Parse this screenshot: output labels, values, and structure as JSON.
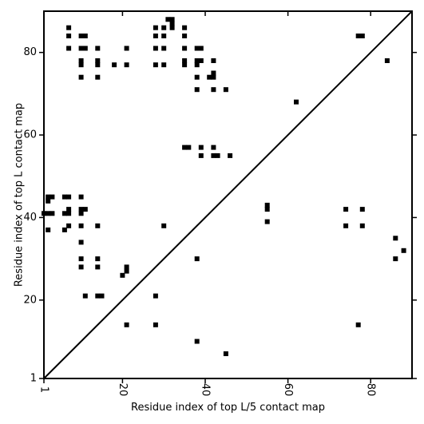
{
  "chart_data": {
    "type": "scatter",
    "title": "",
    "xlabel": "Residue index of top L/5 contact map",
    "ylabel": "Residue index of top L contact map",
    "xlim": [
      1,
      90
    ],
    "ylim": [
      1,
      90
    ],
    "x_ticks": [
      1,
      20,
      40,
      60,
      80
    ],
    "y_ticks": [
      1,
      20,
      40,
      60,
      80
    ],
    "x_tick_labels": [
      "1",
      "20",
      "40",
      "60",
      "80"
    ],
    "y_tick_labels": [
      "1",
      "20",
      "40",
      "60",
      "80"
    ],
    "diagonal": true,
    "marker": "square",
    "marker_color": "#000000",
    "grid": false,
    "series": [
      {
        "points": [
          [
            7,
            86
          ],
          [
            7,
            84
          ],
          [
            7,
            81
          ],
          [
            10,
            84
          ],
          [
            11,
            84
          ],
          [
            10,
            81
          ],
          [
            11,
            81
          ],
          [
            10,
            78
          ],
          [
            10,
            77
          ],
          [
            10,
            74
          ],
          [
            14,
            81
          ],
          [
            14,
            78
          ],
          [
            14,
            77
          ],
          [
            14,
            74
          ],
          [
            18,
            77
          ],
          [
            21,
            81
          ],
          [
            21,
            77
          ],
          [
            28,
            86
          ],
          [
            28,
            84
          ],
          [
            28,
            81
          ],
          [
            28,
            77
          ],
          [
            30,
            86
          ],
          [
            30,
            84
          ],
          [
            30,
            81
          ],
          [
            30,
            77
          ],
          [
            31,
            88
          ],
          [
            32,
            88
          ],
          [
            32,
            87
          ],
          [
            32,
            86
          ],
          [
            35,
            86
          ],
          [
            35,
            84
          ],
          [
            35,
            81
          ],
          [
            35,
            78
          ],
          [
            35,
            77
          ],
          [
            38,
            81
          ],
          [
            39,
            81
          ],
          [
            38,
            78
          ],
          [
            39,
            78
          ],
          [
            38,
            77
          ],
          [
            38,
            74
          ],
          [
            38,
            71
          ],
          [
            41,
            74
          ],
          [
            42,
            75
          ],
          [
            42,
            74
          ],
          [
            42,
            78
          ],
          [
            42,
            71
          ],
          [
            45,
            71
          ],
          [
            62,
            68
          ],
          [
            77,
            84
          ],
          [
            78,
            84
          ],
          [
            84,
            78
          ],
          [
            35,
            57
          ],
          [
            36,
            57
          ],
          [
            39,
            57
          ],
          [
            42,
            57
          ],
          [
            39,
            55
          ],
          [
            42,
            55
          ],
          [
            43,
            55
          ],
          [
            46,
            55
          ],
          [
            2,
            45
          ],
          [
            3,
            45
          ],
          [
            2,
            44
          ],
          [
            6,
            45
          ],
          [
            7,
            45
          ],
          [
            10,
            45
          ],
          [
            1,
            41
          ],
          [
            2,
            41
          ],
          [
            3,
            41
          ],
          [
            6,
            41
          ],
          [
            7,
            41
          ],
          [
            7,
            42
          ],
          [
            10,
            42
          ],
          [
            11,
            42
          ],
          [
            10,
            41
          ],
          [
            6,
            37
          ],
          [
            7,
            38
          ],
          [
            2,
            37
          ],
          [
            10,
            38
          ],
          [
            14,
            38
          ],
          [
            30,
            38
          ],
          [
            10,
            34
          ],
          [
            10,
            30
          ],
          [
            14,
            30
          ],
          [
            10,
            28
          ],
          [
            14,
            28
          ],
          [
            21,
            28
          ],
          [
            21,
            27
          ],
          [
            20,
            26
          ],
          [
            38,
            30
          ],
          [
            11,
            21
          ],
          [
            14,
            21
          ],
          [
            15,
            21
          ],
          [
            28,
            21
          ],
          [
            21,
            14
          ],
          [
            28,
            14
          ],
          [
            38,
            10
          ],
          [
            45,
            7
          ],
          [
            55,
            43
          ],
          [
            55,
            42
          ],
          [
            55,
            39
          ],
          [
            74,
            42
          ],
          [
            78,
            42
          ],
          [
            74,
            38
          ],
          [
            78,
            38
          ],
          [
            86,
            35
          ],
          [
            88,
            32
          ],
          [
            86,
            30
          ],
          [
            77,
            14
          ]
        ]
      }
    ]
  }
}
